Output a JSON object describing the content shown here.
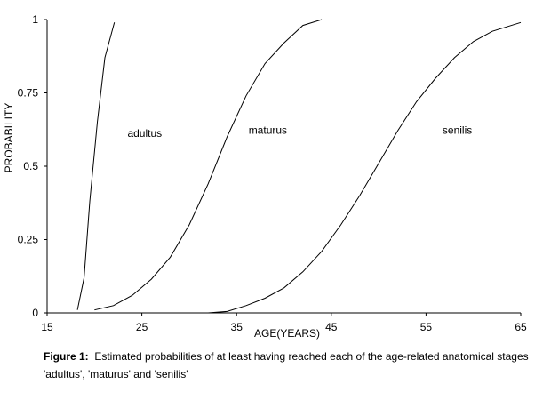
{
  "chart_data": {
    "type": "line",
    "xlabel": "AGE(YEARS)",
    "ylabel": "PROBABILITY",
    "xlim": [
      15,
      65
    ],
    "ylim": [
      0,
      1
    ],
    "x_ticks": [
      15,
      25,
      35,
      45,
      55,
      65
    ],
    "x_tick_labels": [
      "15",
      "25",
      "35",
      "45",
      "55",
      "65"
    ],
    "y_ticks": [
      0,
      0.25,
      0.5,
      0.75,
      1
    ],
    "y_tick_labels": [
      "0",
      "0.25",
      "0.5",
      "0.75",
      "1"
    ],
    "grid": false,
    "legend": "none",
    "series": [
      {
        "name": "adultus",
        "label_pos": [
          25.3,
          0.6
        ],
        "points": [
          [
            18.2,
            0.01
          ],
          [
            18.9,
            0.12
          ],
          [
            19.5,
            0.38
          ],
          [
            20.3,
            0.65
          ],
          [
            21.1,
            0.87
          ],
          [
            22.1,
            0.99
          ]
        ]
      },
      {
        "name": "maturus",
        "label_pos": [
          38.3,
          0.61
        ],
        "points": [
          [
            20.0,
            0.01
          ],
          [
            22.0,
            0.025
          ],
          [
            24.0,
            0.06
          ],
          [
            26.0,
            0.115
          ],
          [
            28.0,
            0.19
          ],
          [
            30.0,
            0.3
          ],
          [
            32.0,
            0.44
          ],
          [
            34.0,
            0.6
          ],
          [
            36.0,
            0.74
          ],
          [
            38.0,
            0.85
          ],
          [
            40.0,
            0.92
          ],
          [
            42.0,
            0.98
          ],
          [
            44.0,
            1.0
          ]
        ]
      },
      {
        "name": "senilis",
        "label_pos": [
          58.3,
          0.61
        ],
        "points": [
          [
            32.0,
            0.0
          ],
          [
            34.0,
            0.005
          ],
          [
            36.0,
            0.025
          ],
          [
            38.0,
            0.05
          ],
          [
            40.0,
            0.085
          ],
          [
            42.0,
            0.14
          ],
          [
            44.0,
            0.21
          ],
          [
            46.0,
            0.3
          ],
          [
            48.0,
            0.4
          ],
          [
            50.0,
            0.51
          ],
          [
            52.0,
            0.62
          ],
          [
            54.0,
            0.72
          ],
          [
            56.0,
            0.8
          ],
          [
            58.0,
            0.87
          ],
          [
            60.0,
            0.925
          ],
          [
            62.0,
            0.96
          ],
          [
            65.0,
            0.99
          ]
        ]
      }
    ]
  },
  "caption": {
    "label": "Figure 1:",
    "text": "Estimated probabilities of at least having reached each of the age-related anatomical stages 'adultus', 'maturus' and 'senilis'"
  }
}
